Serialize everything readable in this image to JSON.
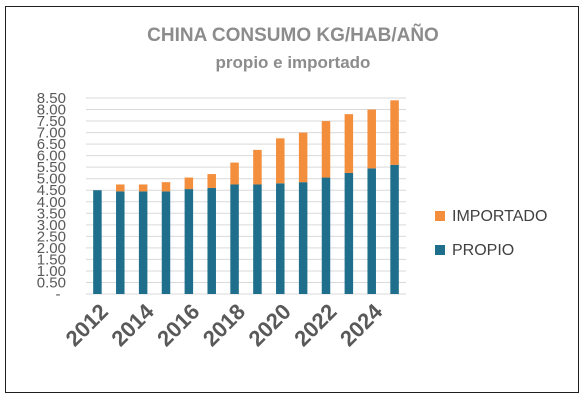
{
  "chart_data": {
    "type": "bar",
    "stacked": true,
    "title": "CHINA CONSUMO KG/HAB/AÑO",
    "subtitle": "propio e importado",
    "categories": [
      "2012",
      "2013",
      "2014",
      "2015",
      "2016",
      "2017",
      "2018",
      "2019",
      "2020",
      "2021",
      "2022",
      "2023",
      "2024",
      "2025"
    ],
    "x_tick_labels": [
      "2012",
      "",
      "2014",
      "",
      "2016",
      "",
      "2018",
      "",
      "2020",
      "",
      "2022",
      "",
      "2024",
      ""
    ],
    "series": [
      {
        "name": "PROPIO",
        "color": "#1f6e8c",
        "values": [
          4.5,
          4.45,
          4.45,
          4.45,
          4.55,
          4.6,
          4.75,
          4.75,
          4.8,
          4.85,
          5.05,
          5.25,
          5.45,
          5.6
        ]
      },
      {
        "name": "IMPORTADO",
        "color": "#f28e3c",
        "values": [
          0.0,
          0.3,
          0.3,
          0.4,
          0.5,
          0.6,
          0.95,
          1.5,
          1.95,
          2.15,
          2.45,
          2.55,
          2.55,
          2.8
        ]
      }
    ],
    "ylim": [
      0,
      8.5
    ],
    "yticks": [
      0,
      0.5,
      1.0,
      1.5,
      2.0,
      2.5,
      3.0,
      3.5,
      4.0,
      4.5,
      5.0,
      5.5,
      6.0,
      6.5,
      7.0,
      7.5,
      8.0,
      8.5
    ],
    "ytick_labels": [
      "-",
      "0.50",
      "1.00",
      "1.50",
      "2.00",
      "2.50",
      "3.00",
      "3.50",
      "4.00",
      "4.50",
      "5.00",
      "5.50",
      "6.00",
      "6.50",
      "7.00",
      "7.50",
      "8.00",
      "8.50"
    ],
    "grid": true,
    "legend_position": "right",
    "legend_order": [
      "IMPORTADO",
      "PROPIO"
    ]
  }
}
